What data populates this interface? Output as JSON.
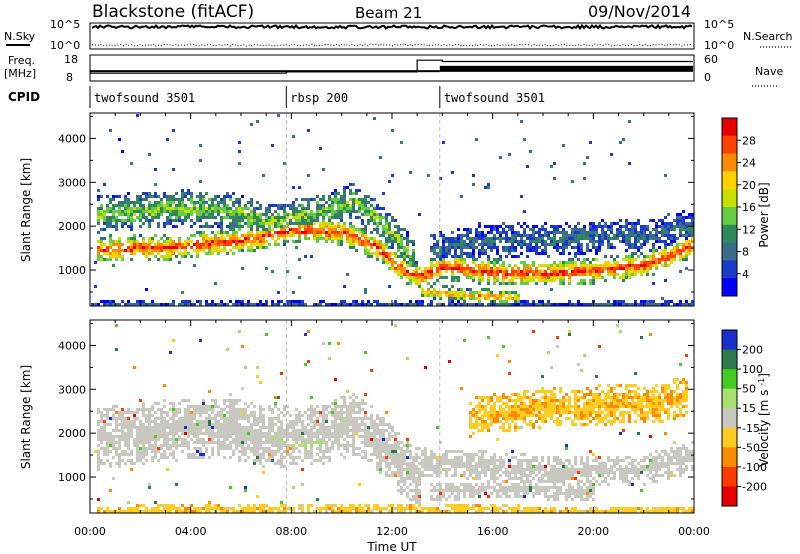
{
  "header": {
    "station": "Blackstone (fitACF)",
    "beam": "Beam 21",
    "date": "09/Nov/2014"
  },
  "noise_panel": {
    "left_label": "N.Sky",
    "right_label": "N.Search",
    "left_ticks": [
      "10^5",
      "10^0"
    ],
    "right_ticks": [
      "10^5",
      "10^0"
    ]
  },
  "freq_panel": {
    "left_label_1": "Freq.",
    "left_label_2": "[MHz]",
    "left_ticks": [
      "18",
      "8"
    ],
    "right_label": "Nave",
    "right_ticks": [
      "60",
      "0"
    ]
  },
  "cpid": {
    "label": "CPID",
    "segments": [
      {
        "name": "twofsound",
        "id": "3501",
        "start_h": 0.0,
        "end_h": 7.8
      },
      {
        "name": "rbsp",
        "id": "200",
        "start_h": 7.8,
        "end_h": 13.9
      },
      {
        "name": "twofsound",
        "id": "3501",
        "start_h": 13.9,
        "end_h": 24.0
      }
    ]
  },
  "time_axis": {
    "label": "Time UT",
    "ticks": [
      "00:00",
      "04:00",
      "08:00",
      "12:00",
      "16:00",
      "20:00",
      "00:00"
    ]
  },
  "range_axis": {
    "label": "Slant Range [km]",
    "ticks": [
      "1000",
      "2000",
      "3000",
      "4000"
    ]
  },
  "power_colorbar": {
    "label": "Power [dB]",
    "ticks": [
      "28",
      "24",
      "20",
      "16",
      "12",
      "8",
      "4"
    ],
    "colors": [
      "#e60000",
      "#ff4000",
      "#ff8c00",
      "#ffd000",
      "#c8e000",
      "#66cc44",
      "#2e8b57",
      "#3d6b8a",
      "#1a3cc8",
      "#0000ff"
    ]
  },
  "velocity_colorbar": {
    "label": "Velocity [m s^-1]",
    "ticks": [
      "200",
      "100",
      "50",
      "15",
      "-15",
      "-50",
      "-100",
      "-200"
    ],
    "colors": [
      "#1a2fcc",
      "#2a7a4a",
      "#44cc22",
      "#a8e070",
      "#c8c8c0",
      "#ffcc22",
      "#ff8c00",
      "#ff3a00",
      "#e60000"
    ]
  },
  "chart_data": {
    "type": "heatmap",
    "title": "Blackstone (fitACF) Beam 21 09/Nov/2014",
    "xlabel": "Time UT",
    "ylabel": "Slant Range [km]",
    "xlim": [
      0,
      24
    ],
    "ylim": [
      180,
      4580
    ],
    "panels": [
      {
        "name": "Power [dB]",
        "zlim": [
          0,
          32
        ],
        "bands": [
          {
            "t": [
              0.3,
              3.5,
              6.5,
              8.0,
              10.0,
              11.5,
              12.2,
              13.0,
              14.0,
              16.0,
              18.0,
              20.0,
              22.0,
              23.0,
              24.0
            ],
            "r": [
              1500,
              1550,
              1750,
              1950,
              1900,
              1500,
              1100,
              880,
              1100,
              980,
              960,
              1020,
              1150,
              1350,
              1650
            ],
            "w": 300,
            "level": 26
          },
          {
            "t": [
              0.3,
              3.0,
              5.5,
              7.0,
              9.0,
              10.5,
              11.8,
              12.8
            ],
            "r": [
              2300,
              2450,
              2400,
              2100,
              2350,
              2600,
              2000,
              1300
            ],
            "w": 420,
            "level": 14
          },
          {
            "t": [
              13.5,
              16.0,
              19.0,
              22.0,
              24.0
            ],
            "r": [
              1500,
              1700,
              1750,
              1850,
              2050
            ],
            "w": 380,
            "level": 8
          },
          {
            "t": [
              13.2,
              15.0,
              17.0
            ],
            "r": [
              560,
              450,
              400
            ],
            "w": 160,
            "level": 22
          },
          {
            "t": [
              0.2,
              12.0,
              24.0
            ],
            "r": [
              240,
              240,
              240
            ],
            "w": 90,
            "level": 6
          }
        ]
      },
      {
        "name": "Velocity [m s^-1]",
        "zlim": [
          -250,
          250
        ],
        "bands": [
          {
            "t": [
              0.3,
              3.0,
              5.5,
              7.0,
              9.0,
              10.5,
              11.5,
              12.3,
              13.0
            ],
            "r": [
              1900,
              2100,
              2150,
              1950,
              2000,
              2250,
              1800,
              1300,
              1000
            ],
            "w": 700,
            "level": 0
          },
          {
            "t": [
              13.2,
              16.0,
              19.0,
              22.0,
              24.0
            ],
            "r": [
              1400,
              1250,
              1150,
              1200,
              1500
            ],
            "w": 350,
            "level": 0
          },
          {
            "t": [
              13.5,
              17.0,
              20.0
            ],
            "r": [
              700,
              760,
              650
            ],
            "w": 200,
            "level": 0
          },
          {
            "t": [
              7.2,
              8.3,
              9.4
            ],
            "r": [
              1900,
              1800,
              1850
            ],
            "w": 300,
            "level": 40
          },
          {
            "t": [
              0.3,
              6.0,
              12.0,
              18.0,
              24.0
            ],
            "r": [
              260,
              280,
              300,
              260,
              240
            ],
            "w": 120,
            "level": -60
          },
          {
            "t": [
              15.0,
              18.5,
              22.5,
              23.7
            ],
            "r": [
              2400,
              2650,
              2700,
              2900
            ],
            "w": 450,
            "level": -70
          }
        ]
      }
    ],
    "noise_sky_level": 0.85,
    "noise_search_level": 0.15,
    "frequency_mhz": [
      {
        "t": 0.0,
        "f": 11.0
      },
      {
        "t": 7.8,
        "f": 11.5
      },
      {
        "t": 13.0,
        "f": 16.0
      },
      {
        "t": 14.0,
        "f": 15.5
      }
    ],
    "nave": [
      {
        "t": 0.0,
        "n": 25
      },
      {
        "t": 7.8,
        "n": 25
      },
      {
        "t": 13.9,
        "n": 35
      }
    ]
  }
}
